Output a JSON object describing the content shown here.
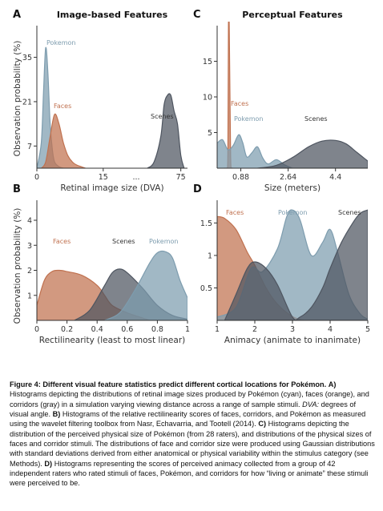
{
  "panels": {
    "A": {
      "letter": "A",
      "title": "Image-based Features",
      "xlabel": "Retinal image size (DVA)"
    },
    "B": {
      "letter": "B",
      "title": "",
      "xlabel": "Rectilinearity (least to most linear)"
    },
    "C": {
      "letter": "C",
      "title": "Perceptual Features",
      "xlabel": "Size (meters)"
    },
    "D": {
      "letter": "D",
      "title": "",
      "xlabel": "Animacy (animate to inanimate)"
    }
  },
  "ylabel_top": "Observation probability (%)",
  "ylabel_bottom": "Observation probability (%)",
  "colors": {
    "faces": "#c0714f",
    "pokemon": "#7d9cae",
    "scenes": "#4e5560"
  },
  "chart_data": [
    {
      "type": "area",
      "panel": "A",
      "title": "Image-based Features",
      "xlabel": "Retinal image size (DVA)",
      "ylabel": "Observation probability (%)",
      "x_tick_labels": [
        "0",
        "15",
        "...",
        "75"
      ],
      "y_ticks": [
        7,
        21,
        35
      ],
      "ylim": [
        0,
        45
      ],
      "series": [
        {
          "name": "Pokemon",
          "x": [
            0,
            1,
            1.5,
            2,
            2.5,
            3,
            3.5,
            4,
            5,
            6
          ],
          "values": [
            0,
            8,
            24,
            38,
            30,
            14,
            6,
            2,
            0.5,
            0
          ]
        },
        {
          "name": "Faces",
          "x": [
            1,
            2,
            3,
            4,
            5,
            6,
            7,
            8,
            9,
            10,
            11
          ],
          "values": [
            0,
            2,
            10,
            17,
            14,
            8,
            4,
            2,
            1,
            0.5,
            0
          ]
        },
        {
          "name": "Scenes",
          "x": [
            65,
            67,
            69,
            70,
            71,
            72,
            73,
            74,
            75,
            76
          ],
          "values": [
            0,
            2,
            10,
            20,
            23,
            23,
            18,
            14,
            4,
            0
          ]
        }
      ]
    },
    {
      "type": "area",
      "panel": "B",
      "xlabel": "Rectilinearity (least to most linear)",
      "ylabel": "Observation probability (%)",
      "x_ticks": [
        0,
        0.2,
        0.4,
        0.6,
        0.8,
        1
      ],
      "y_ticks": [
        1,
        2,
        3,
        4
      ],
      "ylim": [
        0,
        4.8
      ],
      "series": [
        {
          "name": "Faces",
          "x": [
            0,
            0.05,
            0.1,
            0.15,
            0.2,
            0.3,
            0.4,
            0.45,
            0.5,
            0.6,
            0.7,
            0.75
          ],
          "values": [
            0.6,
            1.6,
            1.95,
            2.0,
            1.95,
            1.8,
            1.4,
            1.0,
            0.6,
            0.3,
            0.1,
            0
          ]
        },
        {
          "name": "Scenes",
          "x": [
            0.25,
            0.35,
            0.45,
            0.5,
            0.55,
            0.6,
            0.7,
            0.8,
            0.9,
            1
          ],
          "values": [
            0,
            0.4,
            1.4,
            1.9,
            2.05,
            1.9,
            1.3,
            0.6,
            0.2,
            0.05
          ]
        },
        {
          "name": "Pokemon",
          "x": [
            0.45,
            0.55,
            0.65,
            0.75,
            0.8,
            0.85,
            0.9,
            0.95,
            1
          ],
          "values": [
            0,
            0.3,
            1.2,
            2.3,
            2.7,
            2.75,
            2.5,
            1.6,
            0.9
          ]
        }
      ]
    },
    {
      "type": "area",
      "panel": "C",
      "title": "Perceptual Features",
      "xlabel": "Size (meters)",
      "x_ticks": [
        0.88,
        2.64,
        4.4
      ],
      "y_ticks": [
        5,
        10,
        15
      ],
      "ylim": [
        0,
        20
      ],
      "series": [
        {
          "name": "Faces",
          "x": [
            0.25,
            0.35,
            0.4,
            0.42,
            0.45,
            0.5,
            0.55,
            0.6
          ],
          "values": [
            0,
            0,
            2,
            20,
            20,
            2,
            0,
            0
          ]
        },
        {
          "name": "Pokemon",
          "x": [
            0,
            0.2,
            0.4,
            0.6,
            0.8,
            0.95,
            1.1,
            1.3,
            1.5,
            1.7,
            1.9,
            2.2,
            2.5,
            2.8
          ],
          "values": [
            3.5,
            4,
            2.6,
            3.2,
            4.7,
            3.6,
            1.6,
            2.2,
            3.0,
            1.4,
            0.6,
            1.2,
            0.5,
            0
          ]
        },
        {
          "name": "Scenes",
          "x": [
            1.5,
            2.2,
            2.8,
            3.4,
            3.9,
            4.4,
            4.8,
            5.2,
            5.6
          ],
          "values": [
            0,
            0.4,
            1.5,
            3.0,
            3.8,
            3.9,
            3.4,
            2.2,
            1.0
          ]
        }
      ]
    },
    {
      "type": "area",
      "panel": "D",
      "xlabel": "Animacy (animate to inanimate)",
      "x_ticks": [
        1,
        2,
        3,
        4,
        5
      ],
      "y_ticks": [
        0.5,
        1,
        1.5
      ],
      "ylim": [
        0,
        1.85
      ],
      "series": [
        {
          "name": "Faces",
          "x": [
            1,
            1.2,
            1.5,
            1.8,
            2.0,
            2.3,
            2.6,
            3.0,
            3.3
          ],
          "values": [
            1.6,
            1.57,
            1.4,
            1.05,
            0.85,
            0.5,
            0.25,
            0.06,
            0
          ]
        },
        {
          "name": "Pokemon",
          "x": [
            1,
            1.5,
            1.9,
            2.2,
            2.6,
            2.85,
            3.0,
            3.2,
            3.5,
            3.8,
            4.0,
            4.2,
            4.5,
            4.8,
            5
          ],
          "values": [
            0.05,
            0.2,
            0.8,
            0.75,
            1.1,
            1.6,
            1.7,
            1.55,
            1.0,
            1.2,
            1.4,
            1.05,
            0.4,
            0.1,
            0.02
          ]
        },
        {
          "name": "Scenes",
          "x": [
            1.2,
            1.5,
            1.8,
            2.0,
            2.3,
            2.6,
            3.0,
            3.2,
            3.5,
            3.8,
            4.0,
            4.3,
            4.6,
            4.8,
            5
          ],
          "values": [
            0,
            0.4,
            0.8,
            0.9,
            0.8,
            0.55,
            0.05,
            0.05,
            0.2,
            0.5,
            0.8,
            1.2,
            1.5,
            1.65,
            1.7
          ]
        }
      ]
    }
  ],
  "caption": {
    "lead": "Figure 4: Different visual feature statistics predict different cortical locations for Pokémon.",
    "lead_label": "A)",
    "a_text": "Histograms depicting the distributions of retinal image sizes produced by Pokémon (cyan), faces (orange), and corridors (gray) in a simulation varying viewing distance across a range of sample stimuli.",
    "dva_term": "DVA:",
    "dva_def": "degrees of visual angle.",
    "b_label": "B)",
    "b_text": "Histograms of the relative rectilinearity scores of faces, corridors, and Pokémon as measured using the wavelet filtering toolbox from Nasr, Echavarria, and Tootell (2014).",
    "c_label": "C)",
    "c_text": "Histograms depicting the distribution of the perceived physical size of Pokémon (from 28 raters), and distributions of the physical sizes of faces and corridor stimuli. The distributions of face and corridor size were produced using Gaussian distributions with standard deviations derived from either anatomical or physical variability within the stimulus category (see Methods).",
    "d_label": "D)",
    "d_text": "Histograms representing the scores of perceived animacy collected from a group of 42 independent raters who rated stimuli of faces, Pokémon, and corridors for how “living or animate” these stimuli were perceived to be."
  }
}
